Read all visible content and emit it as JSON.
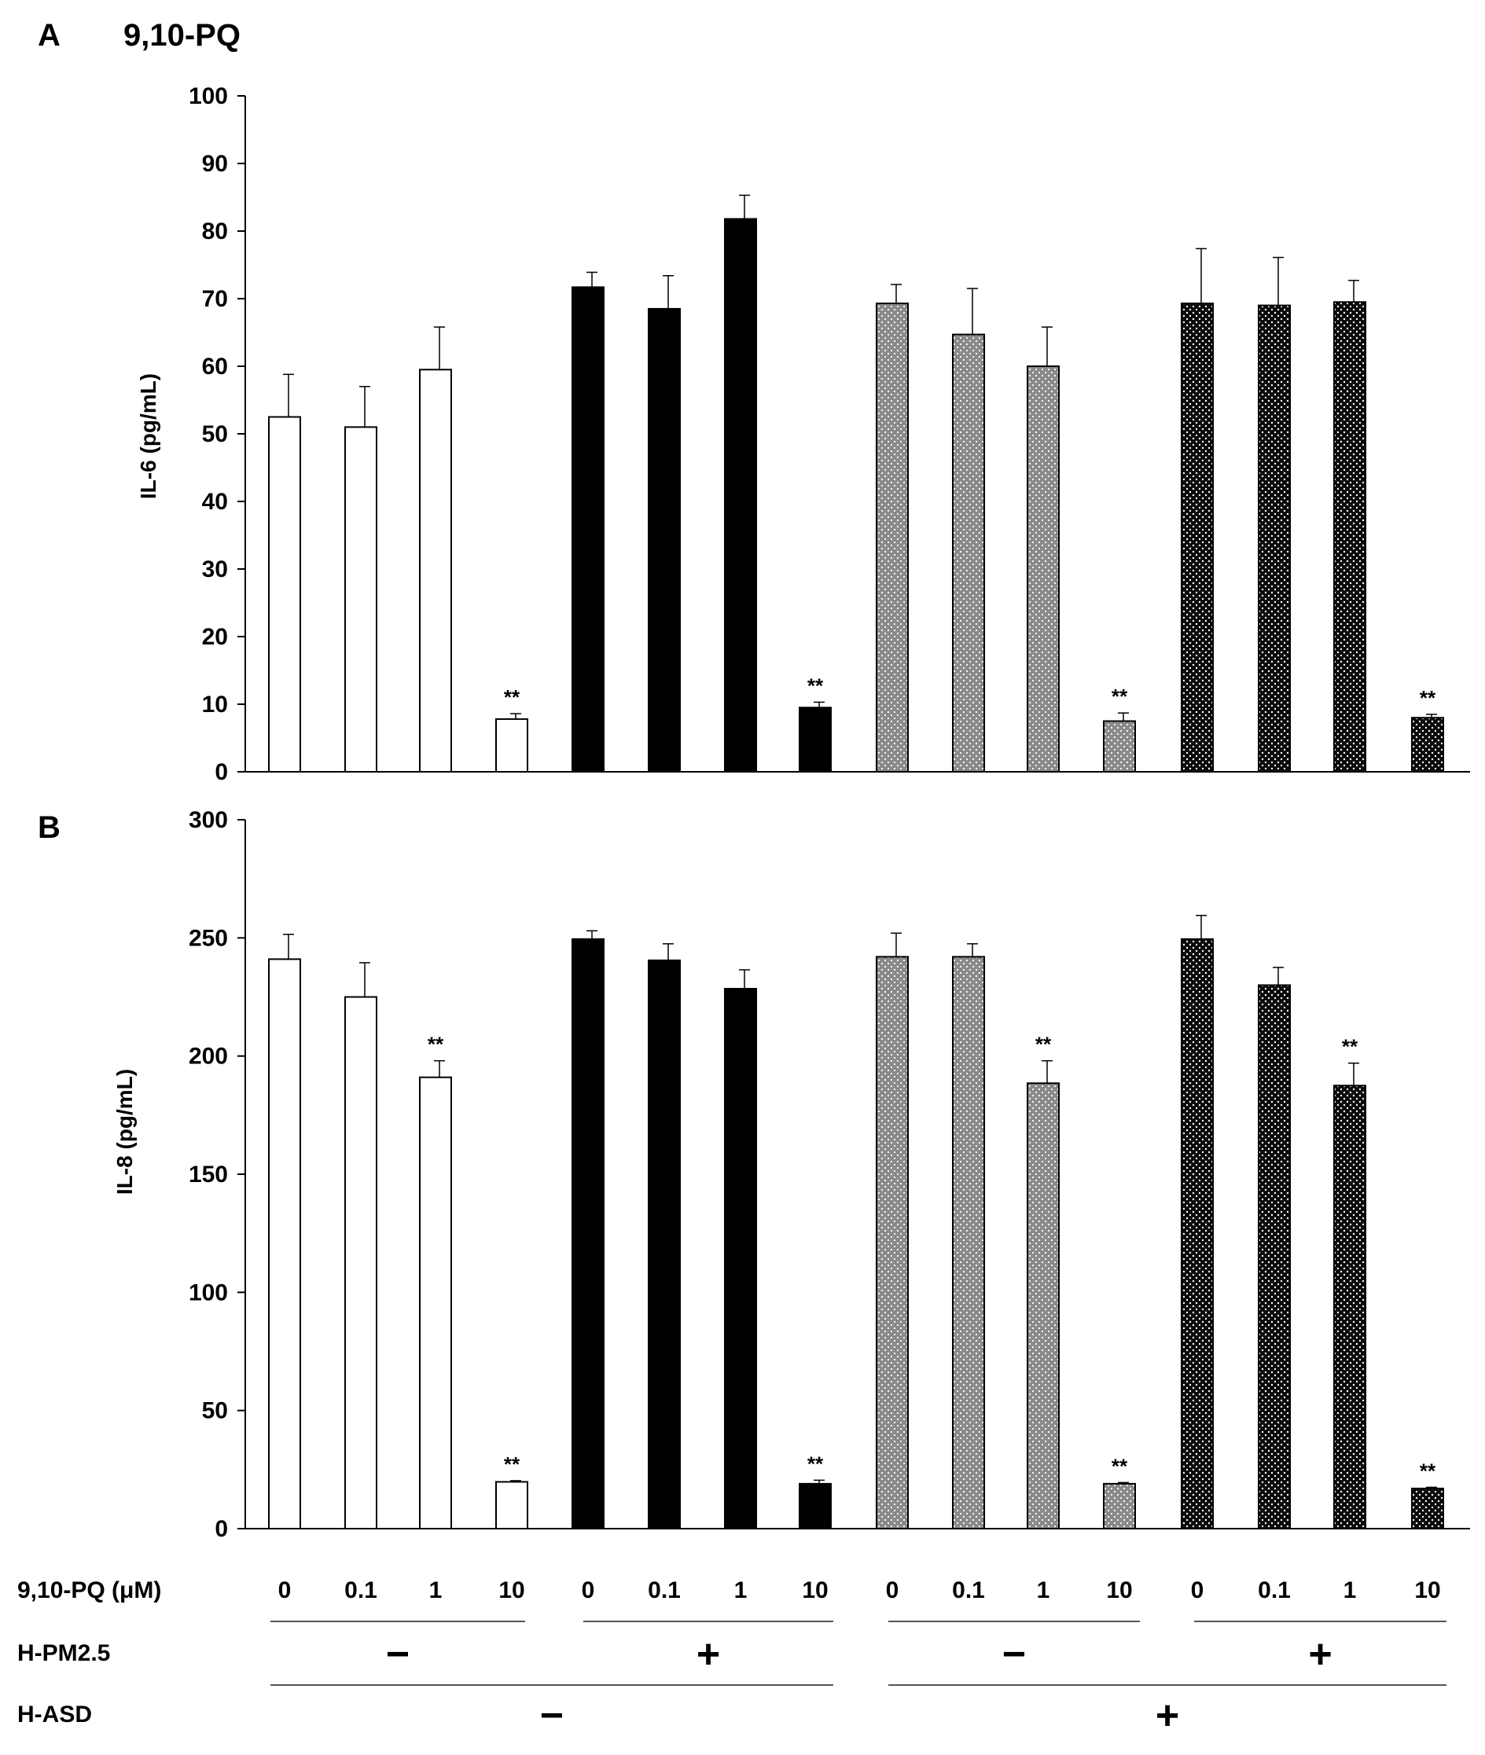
{
  "figure": {
    "panel_a_letter": "A",
    "panel_a_title": "9,10-PQ",
    "panel_b_letter": "B",
    "significance_mark": "**"
  },
  "colors": {
    "open": "#ffffff",
    "solid": "#000000",
    "dotted_gray": "#8a8a8a",
    "dotted_black": "#0a0a0a",
    "dot": "#ffffff",
    "axis": "#000000"
  },
  "groups": [
    {
      "name": "H-PM2.5 − / H-ASD −",
      "fill": "open"
    },
    {
      "name": "H-PM2.5 + / H-ASD −",
      "fill": "solid"
    },
    {
      "name": "H-PM2.5 − / H-ASD +",
      "fill": "dotted_gray"
    },
    {
      "name": "H-PM2.5 + / H-ASD +",
      "fill": "dotted_black"
    }
  ],
  "chart_data": [
    {
      "type": "bar",
      "panel": "A",
      "title": "9,10-PQ",
      "ylabel": "IL-6 (pg/mL)",
      "ylim": [
        0,
        100
      ],
      "yticks": [
        0,
        10,
        20,
        30,
        40,
        50,
        60,
        70,
        80,
        90,
        100
      ],
      "categories": [
        "0",
        "0.1",
        "1",
        "10",
        "0",
        "0.1",
        "1",
        "10",
        "0",
        "0.1",
        "1",
        "10",
        "0",
        "0.1",
        "1",
        "10"
      ],
      "values": [
        52.5,
        51,
        59.5,
        7.8,
        71.7,
        68.5,
        81.8,
        9.5,
        69.3,
        64.7,
        60,
        7.5,
        69.3,
        69,
        69.5,
        8
      ],
      "errors": [
        6.3,
        6,
        6.3,
        0.8,
        2.2,
        4.9,
        3.5,
        0.8,
        2.8,
        6.8,
        5.8,
        1.2,
        8.1,
        7.1,
        3.2,
        0.5
      ],
      "group_index": [
        0,
        0,
        0,
        0,
        1,
        1,
        1,
        1,
        2,
        2,
        2,
        2,
        3,
        3,
        3,
        3
      ],
      "significant": [
        false,
        false,
        false,
        true,
        false,
        false,
        false,
        true,
        false,
        false,
        false,
        true,
        false,
        false,
        false,
        true
      ]
    },
    {
      "type": "bar",
      "panel": "B",
      "title": "",
      "ylabel": "IL-8 (pg/mL)",
      "ylim": [
        0,
        300
      ],
      "yticks": [
        0,
        50,
        100,
        150,
        200,
        250,
        300
      ],
      "categories": [
        "0",
        "0.1",
        "1",
        "10",
        "0",
        "0.1",
        "1",
        "10",
        "0",
        "0.1",
        "1",
        "10",
        "0",
        "0.1",
        "1",
        "10"
      ],
      "values": [
        241,
        225,
        191,
        19.8,
        249.5,
        240.5,
        228.5,
        19,
        242,
        242,
        188.5,
        19,
        249.5,
        230,
        187.5,
        17
      ],
      "errors": [
        10.5,
        14.5,
        7,
        0.5,
        3.5,
        7,
        8,
        1.5,
        10,
        5.5,
        9.5,
        0.5,
        10,
        7.5,
        9.5,
        0.5
      ],
      "group_index": [
        0,
        0,
        0,
        0,
        1,
        1,
        1,
        1,
        2,
        2,
        2,
        2,
        3,
        3,
        3,
        3
      ],
      "significant": [
        false,
        false,
        true,
        true,
        false,
        false,
        false,
        true,
        false,
        false,
        true,
        true,
        false,
        false,
        true,
        true
      ]
    }
  ],
  "x_table": {
    "row1_label": "9,10-PQ (μM)",
    "row1_values": [
      "0",
      "0.1",
      "1",
      "10",
      "0",
      "0.1",
      "1",
      "10",
      "0",
      "0.1",
      "1",
      "10",
      "0",
      "0.1",
      "1",
      "10"
    ],
    "row2_label": "H-PM2.5",
    "row2_values": [
      "−",
      "+",
      "−",
      "+"
    ],
    "row3_label": "H-ASD",
    "row3_values": [
      "−",
      "+"
    ]
  }
}
